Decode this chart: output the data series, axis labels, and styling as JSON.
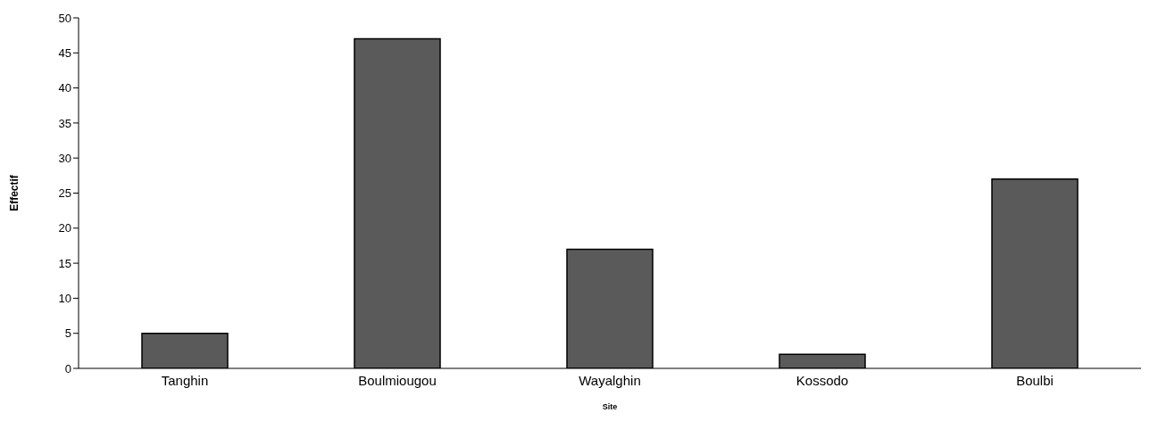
{
  "chart_data": {
    "type": "bar",
    "xlabel": "Site",
    "ylabel": "Effectif",
    "categories": [
      "Tanghin",
      "Boulmiougou",
      "Wayalghin",
      "Kossodo",
      "Boulbi"
    ],
    "values": [
      5,
      47,
      17,
      2,
      27
    ],
    "color": "#5a5a5a",
    "ylim": [
      0,
      50
    ],
    "yticks": [
      0,
      5,
      10,
      15,
      20,
      25,
      30,
      35,
      40,
      45,
      50
    ],
    "grid": false,
    "legend": false
  }
}
